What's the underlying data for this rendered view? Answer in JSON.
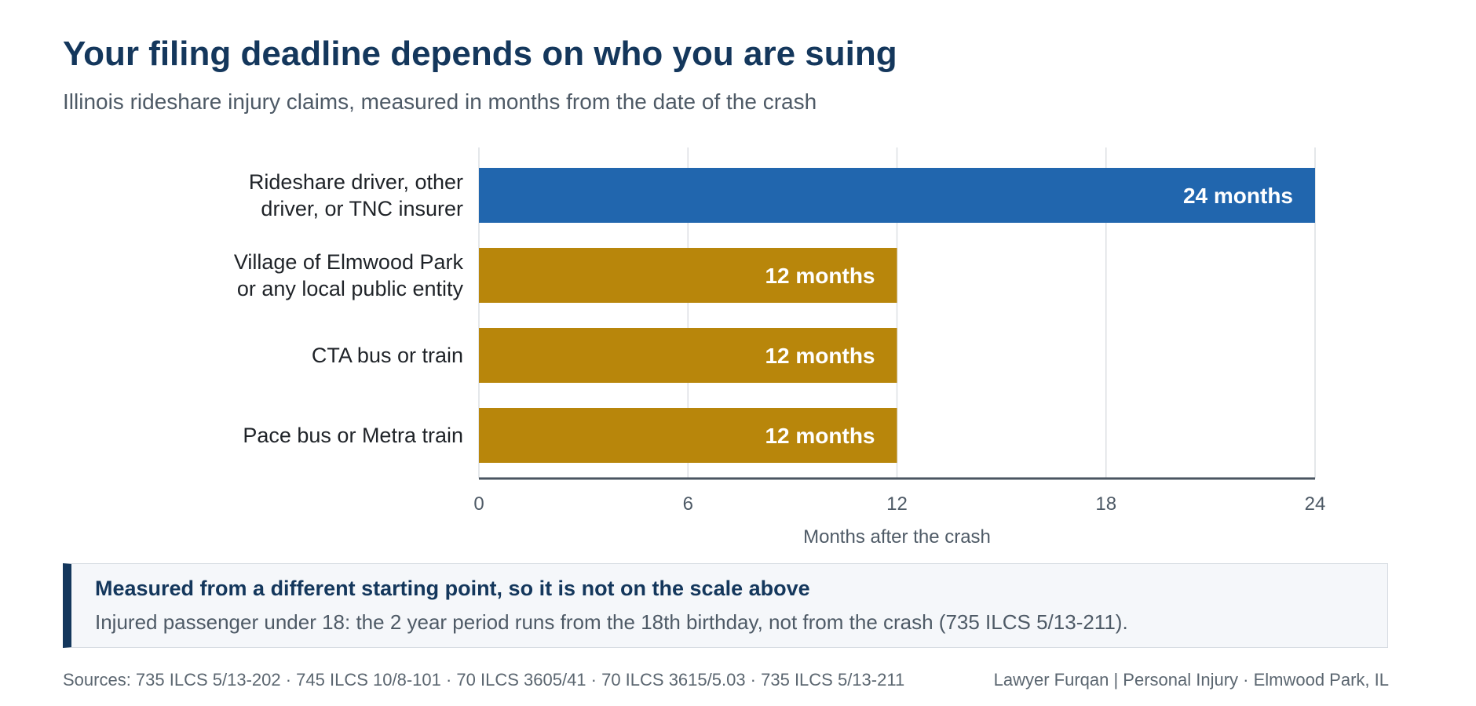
{
  "header": {
    "title": "Your filing deadline depends on who you are suing",
    "subtitle": "Illinois rideshare injury claims, measured in months from the date of the crash"
  },
  "chart_data": {
    "type": "bar",
    "orientation": "horizontal",
    "categories": [
      [
        "Rideshare driver, other",
        "driver, or TNC insurer"
      ],
      [
        "Village of Elmwood Park",
        "or any local public entity"
      ],
      [
        "CTA bus or train"
      ],
      [
        "Pace bus or Metra train"
      ]
    ],
    "values": [
      24,
      12,
      12,
      12
    ],
    "value_labels": [
      "24 months",
      "12 months",
      "12 months",
      "12 months"
    ],
    "colors": [
      "#2166ae",
      "#b8860b",
      "#b8860b",
      "#b8860b"
    ],
    "xlabel": "Months after the crash",
    "xlim": [
      0,
      24
    ],
    "xticks": [
      "0",
      "6",
      "12",
      "18",
      "24"
    ],
    "grid": "vertical",
    "legend": "none"
  },
  "callout": {
    "title": "Measured from a different starting point, so it is not on the scale above",
    "body": "Injured passenger under 18: the 2 year period runs from the 18th birthday, not from the crash (735 ILCS 5/13-211)."
  },
  "footer": {
    "sources": "Sources: 735 ILCS 5/13-202 · 745 ILCS 10/8-101 · 70 ILCS 3605/41 · 70 ILCS 3615/5.03 · 735 ILCS 5/13-211",
    "credit": "Lawyer Furqan | Personal Injury · Elmwood Park, IL"
  },
  "colors": {
    "title": "#14375c",
    "text_muted": "#4e5a66",
    "bar_primary": "#2166ae",
    "bar_secondary": "#b8860b"
  }
}
